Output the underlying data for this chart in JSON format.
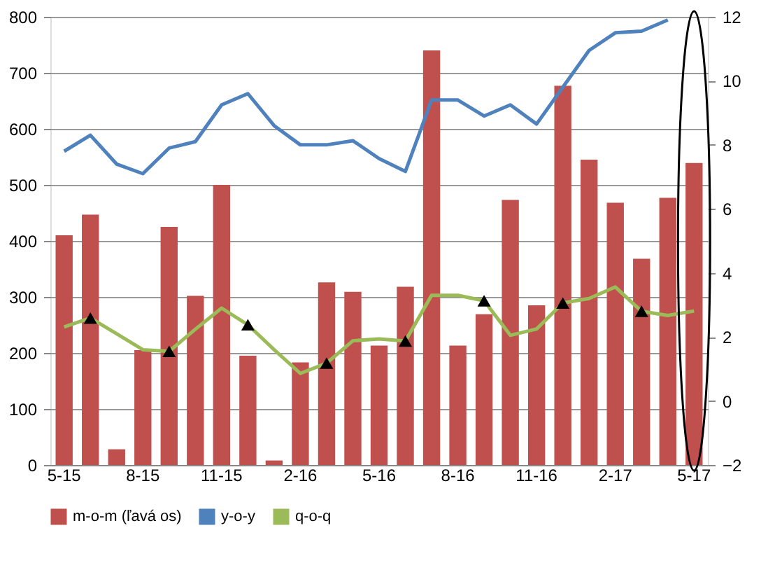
{
  "chart_data": {
    "type": "bar",
    "categories": [
      "5-15",
      null,
      null,
      "8-15",
      null,
      null,
      "11-15",
      null,
      null,
      "2-16",
      null,
      null,
      "5-16",
      null,
      null,
      "8-16",
      null,
      null,
      "11-16",
      null,
      null,
      "2-17",
      null,
      null,
      "5-17"
    ],
    "series": [
      {
        "name": "m-o-m (ľavá os)",
        "color": "#c0504d",
        "values": [
          410,
          447,
          28,
          205,
          425,
          302,
          500,
          195,
          8,
          183,
          326,
          309,
          213,
          318,
          740,
          213,
          269,
          473,
          285,
          677,
          545,
          468,
          368,
          477,
          539
        ]
      },
      {
        "name": "y-o-y",
        "type": "line",
        "axis": "y2",
        "color": "#4f81bd",
        "marker": "none",
        "line_style": "solid",
        "values": [
          7.8,
          8.3,
          7.4,
          7.1,
          7.9,
          8.1,
          9.25,
          9.6,
          8.6,
          8.0,
          8.0,
          8.13,
          7.57,
          7.17,
          9.4,
          9.4,
          8.9,
          9.25,
          8.65,
          9.8,
          10.95,
          11.5,
          11.55,
          11.9,
          null
        ]
      },
      {
        "name": "q-o-q",
        "type": "line",
        "axis": "y2",
        "color": "#9bbb59",
        "marker": "none",
        "line_style": "solid",
        "values": [
          2.31,
          2.59,
          2.1,
          1.6,
          1.55,
          2.24,
          2.9,
          2.38,
          1.6,
          0.86,
          1.18,
          1.88,
          1.94,
          1.87,
          3.3,
          3.3,
          3.13,
          2.05,
          2.25,
          3.06,
          3.2,
          3.56,
          2.8,
          2.67,
          2.81
        ]
      },
      {
        "type": "scatter",
        "axis": "y2",
        "color": "#000000",
        "marker": "triangle",
        "values": [
          null,
          2.59,
          null,
          null,
          1.55,
          null,
          null,
          2.38,
          null,
          null,
          1.18,
          null,
          null,
          1.87,
          null,
          null,
          3.13,
          null,
          null,
          3.06,
          null,
          null,
          2.8,
          null,
          null
        ]
      }
    ],
    "ylim": [
      0,
      800
    ],
    "yticks": [
      0,
      100,
      200,
      300,
      400,
      500,
      600,
      700,
      800
    ],
    "y2lim": [
      -2,
      12
    ],
    "y2ticks": [
      -2,
      0,
      2,
      4,
      6,
      8,
      10,
      12
    ],
    "grid": "y",
    "legend": "bottom"
  }
}
